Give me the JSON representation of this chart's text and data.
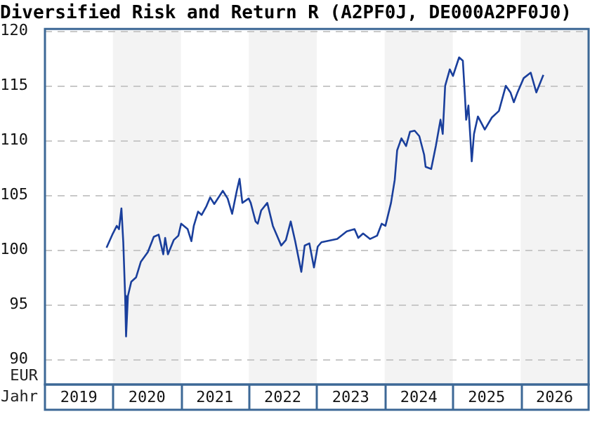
{
  "chart_data": {
    "type": "line",
    "title": "Diversified Risk and Return R (A2PF0J, DE000A2PF0J0)",
    "xlabel": "Jahr",
    "ylabel": "EUR",
    "x": [
      "2019-11-28",
      "2020-01-01",
      "2020-01-22",
      "2020-02-03",
      "2020-02-16",
      "2020-02-26",
      "2020-03-07",
      "2020-03-12",
      "2020-03-22",
      "2020-04-09",
      "2020-05-05",
      "2020-05-30",
      "2020-07-07",
      "2020-08-08",
      "2020-09-03",
      "2020-09-28",
      "2020-10-08",
      "2020-10-23",
      "2020-11-23",
      "2020-12-18",
      "2021-01-02",
      "2021-02-06",
      "2021-02-26",
      "2021-03-11",
      "2021-04-03",
      "2021-04-22",
      "2021-05-18",
      "2021-06-07",
      "2021-06-29",
      "2021-08-14",
      "2021-09-09",
      "2021-10-03",
      "2021-10-28",
      "2021-11-12",
      "2021-11-27",
      "2021-12-31",
      "2022-01-11",
      "2022-02-06",
      "2022-02-18",
      "2022-03-08",
      "2022-04-10",
      "2022-05-10",
      "2022-06-24",
      "2022-07-19",
      "2022-08-14",
      "2022-09-07",
      "2022-10-10",
      "2022-10-28",
      "2022-11-22",
      "2022-12-17",
      "2023-01-06",
      "2023-01-26",
      "2023-04-21",
      "2023-06-11",
      "2023-07-23",
      "2023-08-12",
      "2023-09-07",
      "2023-10-14",
      "2023-11-21",
      "2023-12-16",
      "2024-01-05",
      "2024-02-04",
      "2024-02-24",
      "2024-03-08",
      "2024-03-31",
      "2024-04-25",
      "2024-05-16",
      "2024-06-10",
      "2024-07-05",
      "2024-07-31",
      "2024-08-08",
      "2024-09-07",
      "2024-10-02",
      "2024-10-27",
      "2024-11-08",
      "2024-11-21",
      "2024-12-16",
      "2025-01-02",
      "2025-02-04",
      "2025-02-24",
      "2025-03-07",
      "2025-03-14",
      "2025-03-26",
      "2025-04-13",
      "2025-04-25",
      "2025-05-16",
      "2025-06-22",
      "2025-07-30",
      "2025-09-06",
      "2025-10-13",
      "2025-11-07",
      "2025-11-25",
      "2025-12-15",
      "2026-01-17",
      "2026-02-24",
      "2026-03-26",
      "2026-05-03"
    ],
    "series": [
      {
        "color": "#1a3f9c",
        "values": [
          100.2,
          101.5,
          102.2,
          101.9,
          103.8,
          100.7,
          95.8,
          92.1,
          95.8,
          97.1,
          97.5,
          98.9,
          99.8,
          101.2,
          101.4,
          99.6,
          101.1,
          99.6,
          100.9,
          101.3,
          102.4,
          101.9,
          100.8,
          102.2,
          103.5,
          103.2,
          104.0,
          104.8,
          104.2,
          105.4,
          104.7,
          103.3,
          105.4,
          106.5,
          104.3,
          104.7,
          104.3,
          102.6,
          102.4,
          103.6,
          104.3,
          102.2,
          100.4,
          100.9,
          102.6,
          100.8,
          98.0,
          100.4,
          100.6,
          98.4,
          100.3,
          100.7,
          101.0,
          101.7,
          101.9,
          101.1,
          101.5,
          101.0,
          101.3,
          102.4,
          102.2,
          104.3,
          106.4,
          109.1,
          110.2,
          109.5,
          110.8,
          110.9,
          110.4,
          108.7,
          107.6,
          107.4,
          109.5,
          111.9,
          110.6,
          115.0,
          116.5,
          115.9,
          117.6,
          117.3,
          114.2,
          111.9,
          113.2,
          108.1,
          110.6,
          112.2,
          111.0,
          112.1,
          112.7,
          115.0,
          114.4,
          113.5,
          114.4,
          115.7,
          116.2,
          114.4,
          116.0
        ]
      }
    ],
    "xlim": [
      "2019-01-01",
      "2027-01-01"
    ],
    "xticks": [
      {
        "value": "2019-07-02",
        "label": "2019"
      },
      {
        "value": "2020-07-02",
        "label": "2020"
      },
      {
        "value": "2021-07-02",
        "label": "2021"
      },
      {
        "value": "2022-07-02",
        "label": "2022"
      },
      {
        "value": "2023-07-02",
        "label": "2023"
      },
      {
        "value": "2024-07-02",
        "label": "2024"
      },
      {
        "value": "2025-07-02",
        "label": "2025"
      },
      {
        "value": "2026-07-02",
        "label": "2026"
      }
    ],
    "ylim": [
      87.7,
      120.2
    ],
    "yticks": [
      90,
      95,
      100,
      105,
      110,
      115,
      120
    ],
    "bands": [
      {
        "axis": "x",
        "from": "2020-01-01",
        "to": "2021-01-01",
        "color": "#f3f3f3"
      },
      {
        "axis": "x",
        "from": "2022-01-01",
        "to": "2023-01-01",
        "color": "#f3f3f3"
      },
      {
        "axis": "x",
        "from": "2024-01-01",
        "to": "2025-01-01",
        "color": "#f3f3f3"
      },
      {
        "axis": "x",
        "from": "2026-01-01",
        "to": "2027-01-01",
        "color": "#f3f3f3"
      }
    ],
    "grid": "y",
    "line_style": "solid",
    "marker": "none",
    "legend": false
  }
}
